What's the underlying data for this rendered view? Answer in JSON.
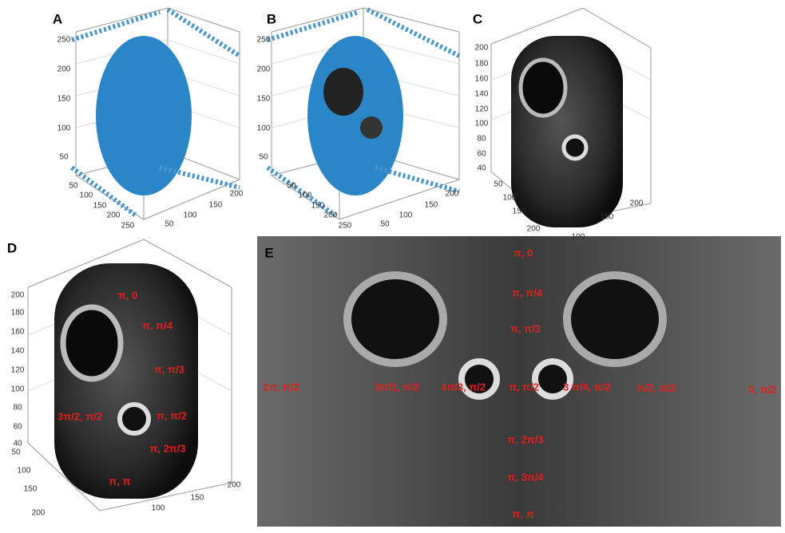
{
  "panels": [
    {
      "label": "A",
      "z_ticks": [
        250,
        200,
        150,
        100,
        50
      ],
      "x_ticks": [
        50,
        100,
        150,
        200,
        250
      ],
      "y_ticks": [
        50,
        100,
        150,
        200
      ]
    },
    {
      "label": "B",
      "z_ticks": [
        250,
        200,
        150,
        100,
        50
      ],
      "x_ticks": [
        50,
        100,
        150,
        200,
        250
      ],
      "y_ticks": [
        50,
        100,
        150,
        200
      ]
    },
    {
      "label": "C",
      "z_ticks": [
        200,
        180,
        160,
        140,
        120,
        100,
        80,
        60,
        40
      ],
      "x_ticks": [
        50,
        100,
        150,
        200
      ],
      "y_ticks": [
        100,
        150,
        200
      ]
    },
    {
      "label": "D",
      "z_ticks": [
        200,
        180,
        160,
        140,
        120,
        100,
        80,
        60,
        40
      ],
      "x_ticks": [
        50,
        100,
        150,
        200
      ],
      "y_ticks": [
        100,
        150,
        200
      ]
    },
    {
      "label": "E"
    }
  ],
  "annotations_d": [
    "π, 0",
    "π, π/4",
    "π, π/3",
    "3π/2, π/2",
    "π, π/2",
    "π, 2π/3",
    "π, π"
  ],
  "annotations_e": [
    "π, 0",
    "π, π/4",
    "π, π/3",
    "2π, π/2",
    "3π/2, π/2",
    "4π/3, π/2",
    "π, π/2",
    "3 π/4, π/2",
    "π/2, π/2",
    "0, π/2",
    "π, 2π/3",
    "π, 3π/4",
    "π, π"
  ]
}
